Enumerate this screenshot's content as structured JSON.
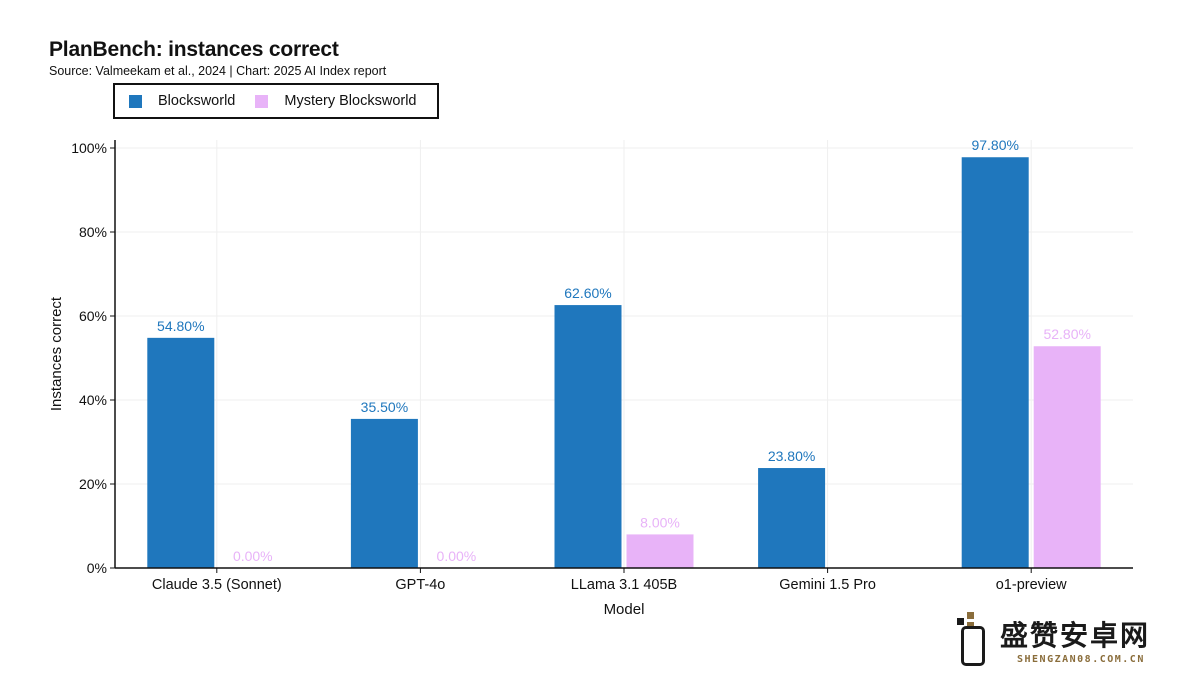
{
  "chart_data": {
    "type": "bar",
    "title": "PlanBench: instances correct",
    "subtitle": "Source: Valmeekam et al., 2024 | Chart: 2025 AI Index report",
    "xlabel": "Model",
    "ylabel": "Instances correct",
    "ylim": [
      0,
      100
    ],
    "yticks": [
      "0%",
      "20%",
      "40%",
      "60%",
      "80%",
      "100%"
    ],
    "grid": true,
    "legend_position": "top-left",
    "categories": [
      "Claude 3.5 (Sonnet)",
      "GPT-4o",
      "LLama 3.1 405B",
      "Gemini 1.5 Pro",
      "o1-preview"
    ],
    "series": [
      {
        "name": "Blocksworld",
        "color": "#1f77bd",
        "values": [
          54.8,
          35.5,
          62.6,
          23.8,
          97.8
        ],
        "labels": [
          "54.80%",
          "35.50%",
          "62.60%",
          "23.80%",
          "97.80%"
        ]
      },
      {
        "name": "Mystery Blocksworld",
        "color": "#e8b3f8",
        "values": [
          0.0,
          0.0,
          8.0,
          null,
          52.8
        ],
        "labels": [
          "0.00%",
          "0.00%",
          "8.00%",
          null,
          "52.80%"
        ]
      }
    ]
  },
  "watermark": {
    "text": "盛赞安卓网",
    "url": "SHENGZAN08.COM.CN"
  }
}
